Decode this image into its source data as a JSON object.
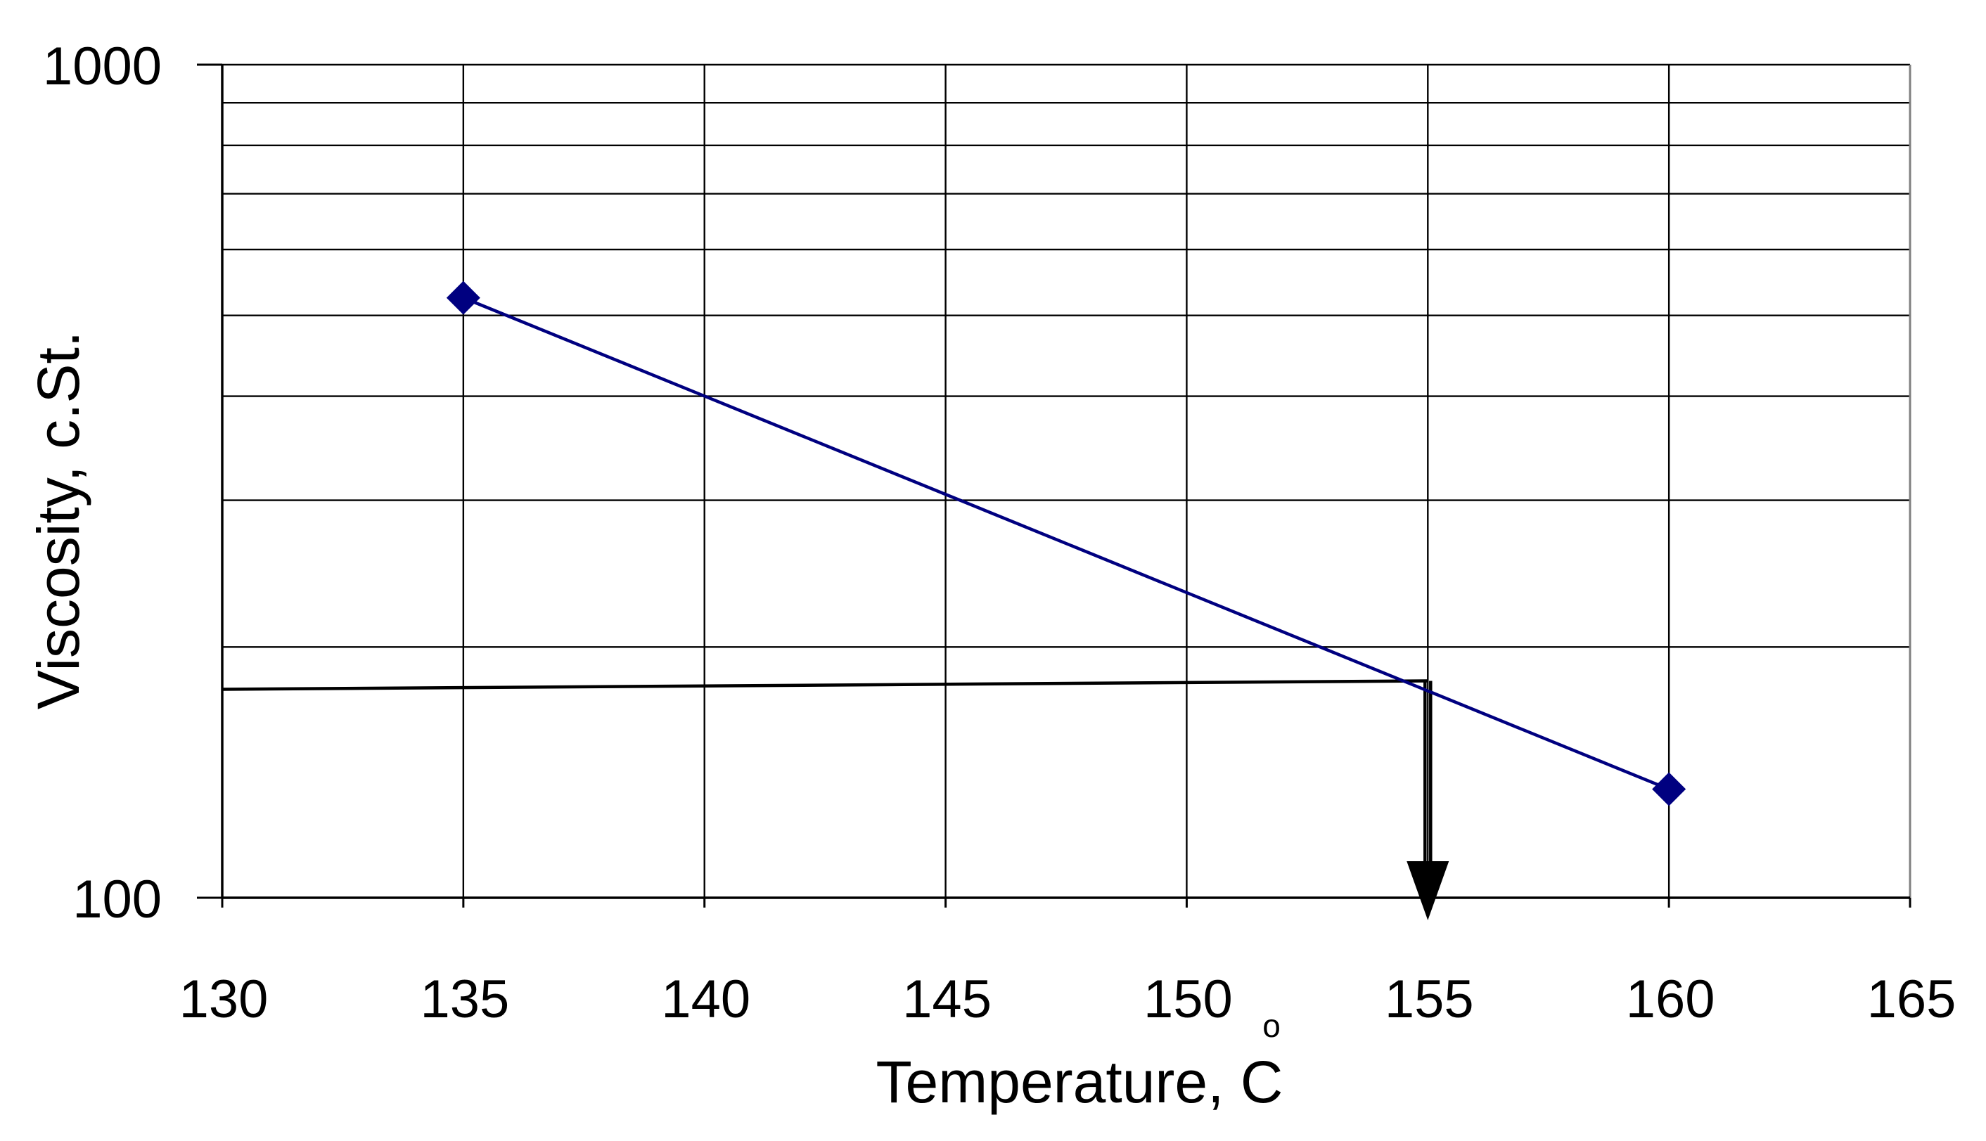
{
  "chart_data": {
    "type": "line",
    "title": "",
    "xlabel": "Temperature, C",
    "xlabel_text": "Temperature, C",
    "xlabel_degree_symbol": "o",
    "ylabel": "Viscosity, c.St.",
    "xlim": [
      130,
      165
    ],
    "ylim": [
      100,
      1000
    ],
    "yscale": "log",
    "grid": true,
    "x_ticks": [
      130,
      135,
      140,
      145,
      150,
      155,
      160,
      165
    ],
    "y_tick_labels": [
      "1000",
      "100"
    ],
    "y_tick_values": [
      1000,
      100
    ],
    "y_gridlines": [
      100,
      200,
      300,
      400,
      500,
      600,
      700,
      800,
      900,
      1000
    ],
    "series": [
      {
        "name": "Viscosity",
        "x": [
          135,
          160
        ],
        "y": [
          525,
          135
        ],
        "color": "#000080",
        "marker": "diamond"
      }
    ],
    "annotations": [
      {
        "type": "reading-line",
        "description": "horizontal line from y-axis to the series, then arrow down to x-axis",
        "y": 180,
        "x": 155,
        "color": "#000000"
      }
    ]
  },
  "colors": {
    "series_line": "#000080",
    "grid": "#000000",
    "annotation": "#000000",
    "frame": "#808080"
  }
}
